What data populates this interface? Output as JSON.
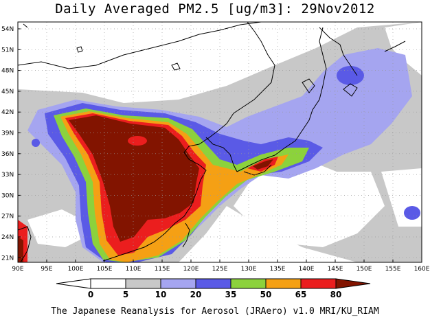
{
  "title": "Daily Averaged PM2.5 [ug/m3]: 29Nov2012",
  "footer": "The Japanese Reanalysis for Aerosol (JRAero) v1.0 MRI/KU_RIAM",
  "lat_labels": [
    "54N",
    "51N",
    "48N",
    "45N",
    "42N",
    "39N",
    "36N",
    "33N",
    "30N",
    "27N",
    "24N",
    "21N"
  ],
  "lon_labels": [
    "90E",
    "95E",
    "100E",
    "105E",
    "110E",
    "115E",
    "120E",
    "125E",
    "130E",
    "135E",
    "140E",
    "145E",
    "150E",
    "155E",
    "160E"
  ],
  "colorbar": {
    "labels": [
      "0",
      "5",
      "10",
      "20",
      "35",
      "50",
      "65",
      "80"
    ],
    "colors": [
      "#ffffff",
      "#c8c8c8",
      "#a5a5f0",
      "#5a5ae6",
      "#8cd23c",
      "#f5a014",
      "#eb1e1e",
      "#821400"
    ]
  }
}
